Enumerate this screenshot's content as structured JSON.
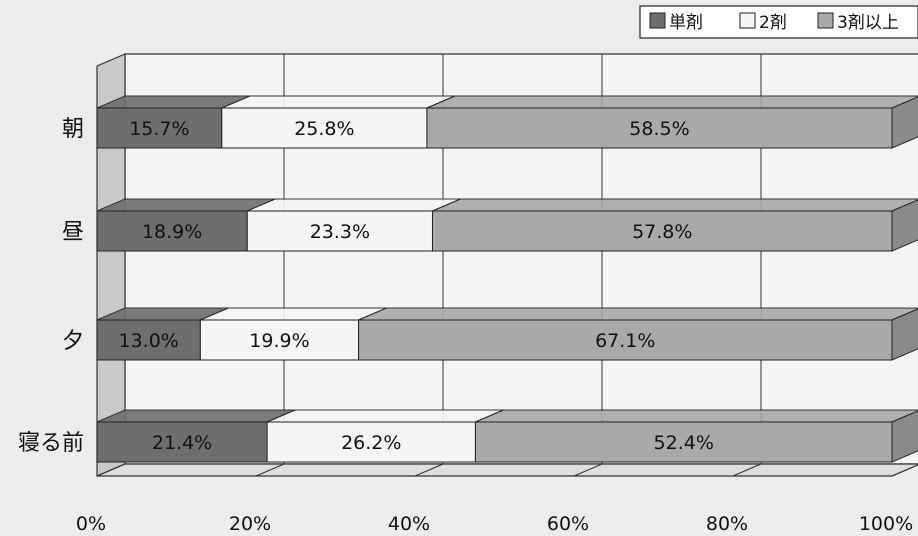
{
  "chart_data": {
    "type": "bar",
    "orientation": "horizontal",
    "stacked": true,
    "percent_stacked": true,
    "categories": [
      "朝",
      "昼",
      "夕",
      "寝る前"
    ],
    "series": [
      {
        "name": "単剤",
        "values": [
          15.7,
          18.9,
          13.0,
          21.4
        ],
        "labels": [
          "15.7%",
          "18.9%",
          "13.0%",
          "21.4%"
        ],
        "color": "#6e6e6e"
      },
      {
        "name": "2剤",
        "values": [
          25.8,
          23.3,
          19.9,
          26.2
        ],
        "labels": [
          "25.8%",
          "23.3%",
          "19.9%",
          "26.2%"
        ],
        "color": "#f5f5f5"
      },
      {
        "name": "3剤以上",
        "values": [
          58.5,
          57.8,
          67.1,
          52.4
        ],
        "labels": [
          "58.5%",
          "57.8%",
          "67.1%",
          "52.4%"
        ],
        "color": "#a9a9a9"
      }
    ],
    "x_ticks": [
      "0%",
      "20%",
      "40%",
      "60%",
      "80%",
      "100%"
    ],
    "xlim": [
      0,
      100
    ],
    "legend_position": "top-right",
    "three_d": true
  }
}
